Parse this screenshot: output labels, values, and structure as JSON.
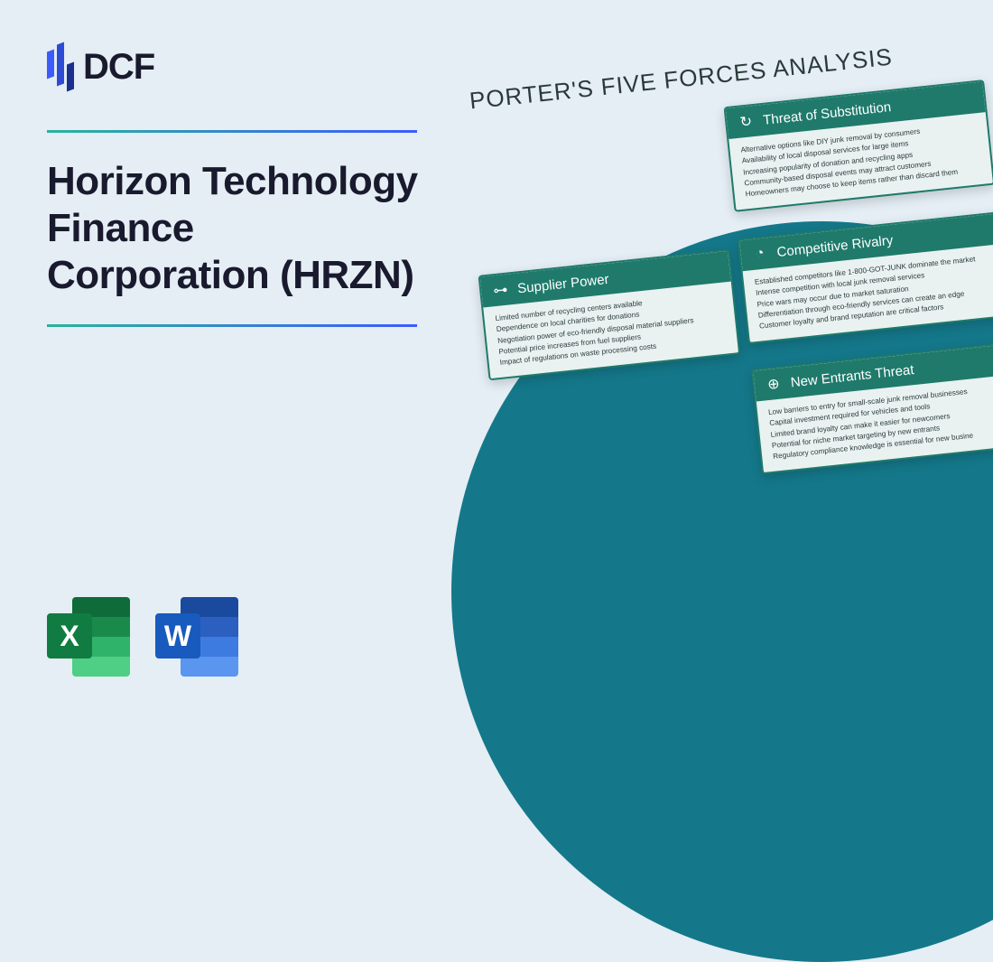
{
  "colors": {
    "page_bg": "#e4eef4",
    "circle_bg": "#14788a",
    "card_header_bg": "#1f7a6b",
    "card_bg": "#e9f2f0",
    "gradient_start": "#2bb39a",
    "gradient_end": "#3b5bff",
    "dcf_bar1": "#3b5bff",
    "dcf_bar2": "#2e4bd6",
    "dcf_bar3": "#1a2f8f",
    "excel_dark": "#0f6b3a",
    "excel_mid": "#1a8a4a",
    "excel_light": "#2fb36a",
    "excel_pale": "#4ecf85",
    "excel_front": "#107c41",
    "word_dark": "#1a4a9e",
    "word_mid": "#2b5fc0",
    "word_light": "#3d7be0",
    "word_pale": "#5a95f0",
    "word_front": "#185abd"
  },
  "logo": {
    "text": "DCF"
  },
  "company_title": "Horizon Technology Finance Corporation (HRZN)",
  "file_icons": {
    "excel_letter": "X",
    "word_letter": "W"
  },
  "diagram_title": "PORTER'S FIVE FORCES ANALYSIS",
  "cards": {
    "substitution": {
      "title": "Threat of Substitution",
      "icon": "↻",
      "lines": [
        "Alternative options like DIY junk removal by consumers",
        "Availability of local disposal services for large items",
        "Increasing popularity of donation and recycling apps",
        "Community-based disposal events may attract customers",
        "Homeowners may choose to keep items rather than discard them"
      ]
    },
    "supplier": {
      "title": "Supplier Power",
      "icon": "⊶",
      "lines": [
        "Limited number of recycling centers available",
        "Dependence on local charities for donations",
        "Negotiation power of eco-friendly disposal material suppliers",
        "Potential price increases from fuel suppliers",
        "Impact of regulations on waste processing costs"
      ]
    },
    "rivalry": {
      "title": "Competitive Rivalry",
      "icon": "◔",
      "lines": [
        "Established competitors like 1-800-GOT-JUNK dominate the market",
        "Intense competition with local junk removal services",
        "Price wars may occur due to market saturation",
        "Differentiation through eco-friendly services can create an edge",
        "Customer loyalty and brand reputation are critical factors"
      ]
    },
    "entrants": {
      "title": "New Entrants Threat",
      "icon": "⊕",
      "lines": [
        "Low barriers to entry for small-scale junk removal businesses",
        "Capital investment required for vehicles and tools",
        "Limited brand loyalty can make it easier for newcomers",
        "Potential for niche market targeting by new entrants",
        "Regulatory compliance knowledge is essential for new busine"
      ]
    }
  }
}
